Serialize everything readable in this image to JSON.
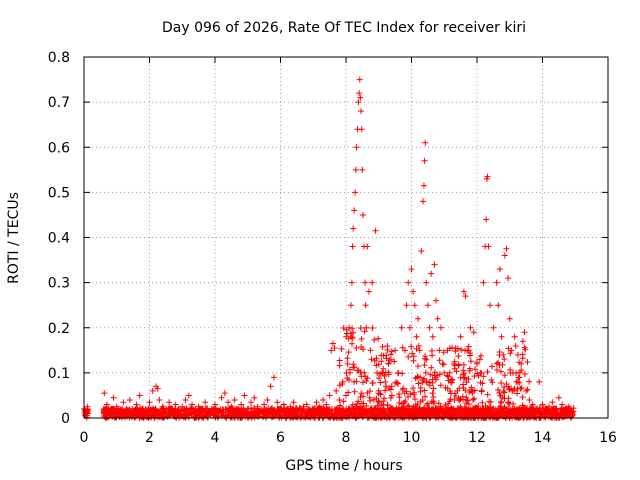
{
  "chart_data": {
    "type": "scatter",
    "title": "Day 096 of 2026, Rate Of TEC Index for receiver kiri",
    "xlabel": "GPS time / hours",
    "ylabel": "ROTI / TECUs",
    "xlim": [
      0,
      16
    ],
    "ylim": [
      0,
      0.8
    ],
    "xticks": [
      "0",
      "2",
      "4",
      "6",
      "8",
      "10",
      "12",
      "14",
      "16"
    ],
    "yticks": [
      "0",
      "0.1",
      "0.2",
      "0.3",
      "0.4",
      "0.5",
      "0.6",
      "0.7",
      "0.8"
    ],
    "grid": true,
    "marker": "plus",
    "series": [
      {
        "name": "ROTI",
        "color": "#ff0000",
        "points": [
          [
            0.0,
            0.02
          ],
          [
            0.05,
            0.015
          ],
          [
            0.1,
            0.025
          ],
          [
            0.12,
            0.01
          ],
          [
            0.6,
            0.02
          ],
          [
            0.62,
            0.055
          ],
          [
            0.7,
            0.03
          ],
          [
            0.8,
            0.015
          ],
          [
            0.9,
            0.045
          ],
          [
            1.0,
            0.025
          ],
          [
            1.1,
            0.01
          ],
          [
            1.2,
            0.035
          ],
          [
            1.3,
            0.02
          ],
          [
            1.4,
            0.04
          ],
          [
            1.5,
            0.015
          ],
          [
            1.6,
            0.03
          ],
          [
            1.7,
            0.05
          ],
          [
            1.8,
            0.02
          ],
          [
            1.9,
            0.01
          ],
          [
            2.0,
            0.035
          ],
          [
            2.1,
            0.06
          ],
          [
            2.2,
            0.07
          ],
          [
            2.25,
            0.065
          ],
          [
            2.3,
            0.04
          ],
          [
            2.4,
            0.025
          ],
          [
            2.5,
            0.015
          ],
          [
            2.6,
            0.035
          ],
          [
            2.7,
            0.02
          ],
          [
            2.8,
            0.03
          ],
          [
            2.9,
            0.01
          ],
          [
            3.0,
            0.025
          ],
          [
            3.1,
            0.04
          ],
          [
            3.2,
            0.05
          ],
          [
            3.3,
            0.03
          ],
          [
            3.4,
            0.015
          ],
          [
            3.5,
            0.025
          ],
          [
            3.6,
            0.02
          ],
          [
            3.7,
            0.035
          ],
          [
            3.8,
            0.01
          ],
          [
            3.9,
            0.02
          ],
          [
            4.0,
            0.03
          ],
          [
            4.1,
            0.015
          ],
          [
            4.2,
            0.045
          ],
          [
            4.3,
            0.055
          ],
          [
            4.4,
            0.035
          ],
          [
            4.5,
            0.025
          ],
          [
            4.6,
            0.04
          ],
          [
            4.7,
            0.015
          ],
          [
            4.8,
            0.03
          ],
          [
            4.9,
            0.05
          ],
          [
            5.0,
            0.02
          ],
          [
            5.1,
            0.035
          ],
          [
            5.2,
            0.045
          ],
          [
            5.3,
            0.025
          ],
          [
            5.4,
            0.015
          ],
          [
            5.5,
            0.03
          ],
          [
            5.6,
            0.04
          ],
          [
            5.7,
            0.07
          ],
          [
            5.8,
            0.09
          ],
          [
            5.9,
            0.035
          ],
          [
            6.0,
            0.02
          ],
          [
            6.1,
            0.03
          ],
          [
            6.2,
            0.015
          ],
          [
            6.3,
            0.025
          ],
          [
            6.4,
            0.035
          ],
          [
            6.5,
            0.02
          ],
          [
            6.6,
            0.01
          ],
          [
            6.7,
            0.025
          ],
          [
            6.8,
            0.03
          ],
          [
            6.9,
            0.015
          ],
          [
            7.0,
            0.02
          ],
          [
            7.1,
            0.035
          ],
          [
            7.2,
            0.025
          ],
          [
            7.3,
            0.04
          ],
          [
            7.4,
            0.03
          ],
          [
            7.5,
            0.05
          ],
          [
            7.55,
            0.15
          ],
          [
            7.6,
            0.165
          ],
          [
            7.65,
            0.155
          ],
          [
            7.7,
            0.06
          ],
          [
            7.8,
            0.04
          ],
          [
            7.9,
            0.08
          ],
          [
            8.0,
            0.05
          ],
          [
            8.05,
            0.12
          ],
          [
            8.1,
            0.2
          ],
          [
            8.12,
            0.1
          ],
          [
            8.15,
            0.25
          ],
          [
            8.18,
            0.3
          ],
          [
            8.2,
            0.38
          ],
          [
            8.22,
            0.42
          ],
          [
            8.25,
            0.46
          ],
          [
            8.28,
            0.5
          ],
          [
            8.3,
            0.55
          ],
          [
            8.32,
            0.6
          ],
          [
            8.35,
            0.64
          ],
          [
            8.38,
            0.7
          ],
          [
            8.4,
            0.72
          ],
          [
            8.42,
            0.75
          ],
          [
            8.44,
            0.71
          ],
          [
            8.46,
            0.68
          ],
          [
            8.48,
            0.64
          ],
          [
            8.5,
            0.55
          ],
          [
            8.52,
            0.45
          ],
          [
            8.55,
            0.38
          ],
          [
            8.58,
            0.3
          ],
          [
            8.6,
            0.25
          ],
          [
            8.62,
            0.2
          ],
          [
            8.65,
            0.38
          ],
          [
            8.7,
            0.28
          ],
          [
            8.75,
            0.15
          ],
          [
            8.8,
            0.3
          ],
          [
            8.9,
            0.415
          ],
          [
            8.95,
            0.1
          ],
          [
            9.0,
            0.06
          ],
          [
            9.1,
            0.1
          ],
          [
            9.2,
            0.08
          ],
          [
            9.3,
            0.12
          ],
          [
            9.4,
            0.05
          ],
          [
            9.5,
            0.15
          ],
          [
            9.6,
            0.1
          ],
          [
            9.7,
            0.2
          ],
          [
            9.8,
            0.15
          ],
          [
            9.85,
            0.25
          ],
          [
            9.9,
            0.3
          ],
          [
            9.95,
            0.2
          ],
          [
            10.0,
            0.33
          ],
          [
            10.05,
            0.28
          ],
          [
            10.1,
            0.25
          ],
          [
            10.15,
            0.18
          ],
          [
            10.2,
            0.22
          ],
          [
            10.25,
            0.15
          ],
          [
            10.3,
            0.37
          ],
          [
            10.35,
            0.48
          ],
          [
            10.38,
            0.515
          ],
          [
            10.4,
            0.57
          ],
          [
            10.42,
            0.61
          ],
          [
            10.45,
            0.3
          ],
          [
            10.5,
            0.25
          ],
          [
            10.55,
            0.2
          ],
          [
            10.6,
            0.32
          ],
          [
            10.65,
            0.18
          ],
          [
            10.7,
            0.34
          ],
          [
            10.75,
            0.26
          ],
          [
            10.8,
            0.22
          ],
          [
            10.85,
            0.15
          ],
          [
            10.9,
            0.2
          ],
          [
            10.95,
            0.12
          ],
          [
            11.0,
            0.1
          ],
          [
            11.1,
            0.15
          ],
          [
            11.2,
            0.08
          ],
          [
            11.3,
            0.12
          ],
          [
            11.4,
            0.06
          ],
          [
            11.5,
            0.18
          ],
          [
            11.6,
            0.28
          ],
          [
            11.65,
            0.27
          ],
          [
            11.7,
            0.15
          ],
          [
            11.8,
            0.2
          ],
          [
            11.9,
            0.19
          ],
          [
            12.0,
            0.12
          ],
          [
            12.1,
            0.1
          ],
          [
            12.2,
            0.3
          ],
          [
            12.25,
            0.38
          ],
          [
            12.28,
            0.44
          ],
          [
            12.3,
            0.53
          ],
          [
            12.32,
            0.535
          ],
          [
            12.35,
            0.38
          ],
          [
            12.4,
            0.25
          ],
          [
            12.5,
            0.2
          ],
          [
            12.6,
            0.3
          ],
          [
            12.65,
            0.25
          ],
          [
            12.7,
            0.33
          ],
          [
            12.75,
            0.18
          ],
          [
            12.8,
            0.14
          ],
          [
            12.85,
            0.36
          ],
          [
            12.9,
            0.375
          ],
          [
            12.95,
            0.31
          ],
          [
            13.0,
            0.22
          ],
          [
            13.05,
            0.15
          ],
          [
            13.1,
            0.1
          ],
          [
            13.15,
            0.18
          ],
          [
            13.2,
            0.08
          ],
          [
            13.25,
            0.14
          ],
          [
            13.3,
            0.09
          ],
          [
            13.35,
            0.12
          ],
          [
            13.4,
            0.17
          ],
          [
            13.45,
            0.19
          ],
          [
            13.5,
            0.06
          ],
          [
            13.6,
            0.04
          ],
          [
            13.7,
            0.03
          ],
          [
            13.8,
            0.02
          ],
          [
            13.9,
            0.08
          ],
          [
            14.0,
            0.03
          ],
          [
            14.1,
            0.015
          ],
          [
            14.2,
            0.025
          ],
          [
            14.3,
            0.035
          ],
          [
            14.4,
            0.02
          ],
          [
            14.5,
            0.045
          ],
          [
            14.6,
            0.03
          ],
          [
            14.7,
            0.015
          ],
          [
            14.8,
            0.025
          ],
          [
            14.9,
            0.01
          ]
        ]
      }
    ],
    "baseline_band": {
      "x_ranges": [
        [
          0.0,
          0.12
        ],
        [
          0.6,
          14.95
        ]
      ],
      "y_max": 0.022
    },
    "event_clusters": [
      {
        "x_range": [
          7.8,
          9.0
        ],
        "y_max": 0.2
      },
      {
        "x_range": [
          9.0,
          13.6
        ],
        "y_max": 0.16
      }
    ]
  }
}
